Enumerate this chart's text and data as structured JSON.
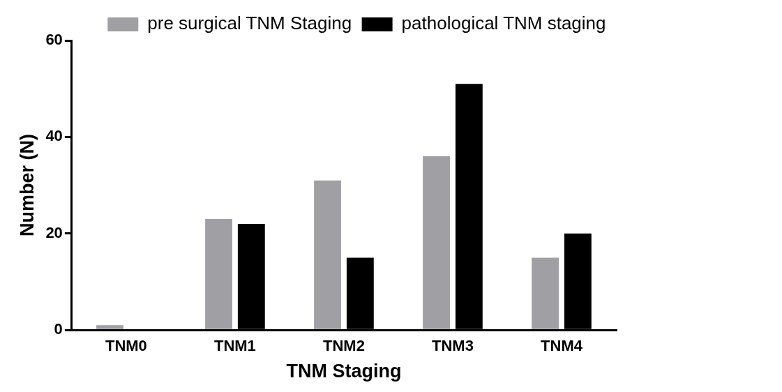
{
  "chart_data": {
    "type": "bar",
    "xlabel": "TNM Staging",
    "ylabel": "Number (N)",
    "categories": [
      "TNM0",
      "TNM1",
      "TNM2",
      "TNM3",
      "TNM4"
    ],
    "series": [
      {
        "name": "pre surgical TNM Staging",
        "color": "#a0a0a4",
        "values": [
          1,
          23,
          31,
          36,
          15
        ]
      },
      {
        "name": "pathological TNM staging",
        "color": "#000000",
        "values": [
          0,
          22,
          15,
          51,
          20
        ]
      }
    ],
    "ylim": [
      0,
      60
    ],
    "yticks": [
      0,
      20,
      40,
      60
    ],
    "grid": false,
    "legend": "top right"
  }
}
